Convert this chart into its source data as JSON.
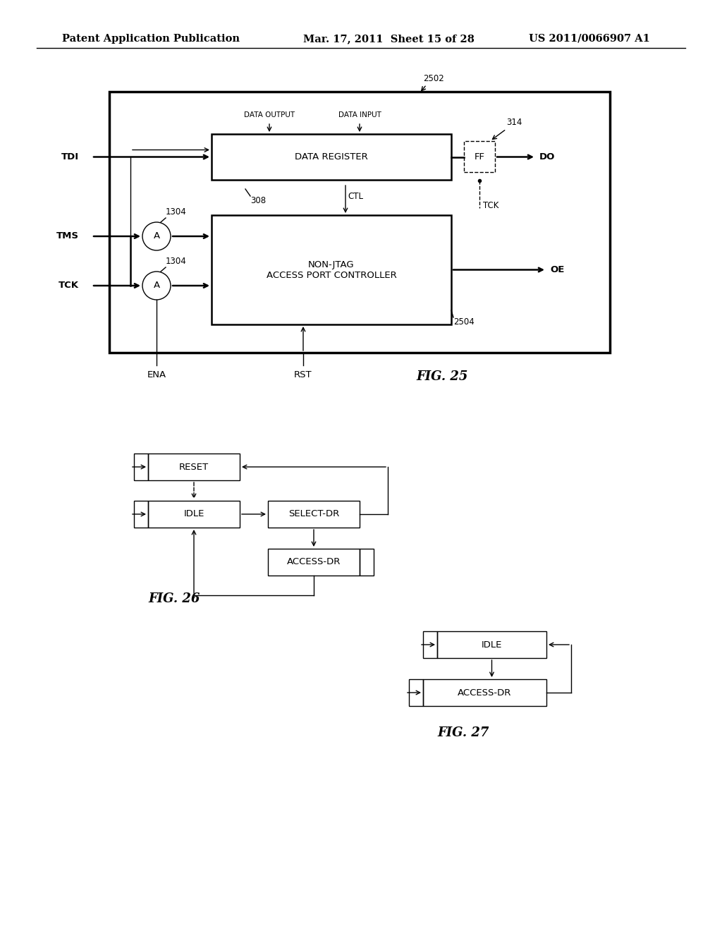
{
  "bg_color": "#ffffff",
  "header_left": "Patent Application Publication",
  "header_mid": "Mar. 17, 2011  Sheet 15 of 28",
  "header_right": "US 2011/0066907 A1",
  "fig25_label": "FIG. 25",
  "fig26_label": "FIG. 26",
  "fig27_label": "FIG. 27",
  "fig25_ref": "2502",
  "fig25_ref2": "314",
  "fig25_ref3": "2504",
  "fig25_ref4": "308",
  "fig25_ref5": "1304",
  "fig25_ref6": "1304",
  "fig25_tdi": "TDI",
  "fig25_tms": "TMS",
  "fig25_tck_left": "TCK",
  "fig25_do": "DO",
  "fig25_oe": "OE",
  "fig25_tck_right": "TCK",
  "fig25_ena": "ENA",
  "fig25_rst": "RST",
  "fig25_data_output": "DATA OUTPUT",
  "fig25_data_input": "DATA INPUT",
  "fig25_ctl": "CTL",
  "fig25_dr": "DATA REGISTER",
  "fig25_ff": "FF",
  "fig25_controller": "NON-JTAG\nACCESS PORT CONTROLLER",
  "fig26_reset": "RESET",
  "fig26_idle": "IDLE",
  "fig26_select_dr": "SELECT-DR",
  "fig26_access_dr": "ACCESS-DR",
  "fig27_idle": "IDLE",
  "fig27_access_dr": "ACCESS-DR"
}
